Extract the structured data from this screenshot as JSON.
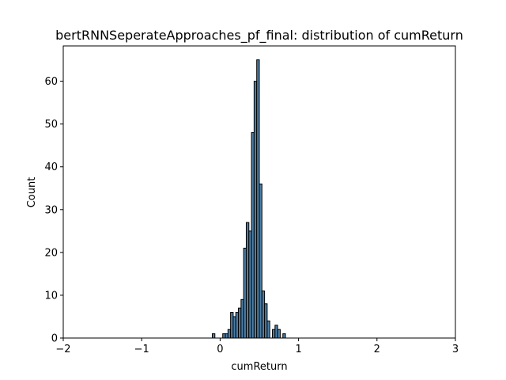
{
  "chart_data": {
    "type": "bar",
    "title": "bertRNNSeperateApproaches_pf_final: distribution of cumReturn",
    "xlabel": "cumReturn",
    "ylabel": "Count",
    "xlim": [
      -2,
      3
    ],
    "ylim": [
      0,
      68.25
    ],
    "xticks": [
      -2,
      -1,
      0,
      1,
      2,
      3
    ],
    "yticks": [
      0,
      10,
      20,
      30,
      40,
      50,
      60
    ],
    "grid": false,
    "bar_color": "#4c7ea6",
    "edge_color": "#000000",
    "bin_width": 0.0333,
    "bins": [
      {
        "x0": -0.1,
        "x1": -0.0667,
        "count": 1
      },
      {
        "x0": -0.0667,
        "x1": -0.0333,
        "count": 0
      },
      {
        "x0": -0.0333,
        "x1": 0.0,
        "count": 0
      },
      {
        "x0": 0.0,
        "x1": 0.0333,
        "count": 0
      },
      {
        "x0": 0.0333,
        "x1": 0.0667,
        "count": 1
      },
      {
        "x0": 0.0667,
        "x1": 0.1,
        "count": 1
      },
      {
        "x0": 0.1,
        "x1": 0.1333,
        "count": 2
      },
      {
        "x0": 0.1333,
        "x1": 0.1667,
        "count": 6
      },
      {
        "x0": 0.1667,
        "x1": 0.2,
        "count": 5
      },
      {
        "x0": 0.2,
        "x1": 0.2333,
        "count": 6
      },
      {
        "x0": 0.2333,
        "x1": 0.2667,
        "count": 7
      },
      {
        "x0": 0.2667,
        "x1": 0.3,
        "count": 9
      },
      {
        "x0": 0.3,
        "x1": 0.3333,
        "count": 21
      },
      {
        "x0": 0.3333,
        "x1": 0.3667,
        "count": 27
      },
      {
        "x0": 0.3667,
        "x1": 0.4,
        "count": 25
      },
      {
        "x0": 0.4,
        "x1": 0.4333,
        "count": 48
      },
      {
        "x0": 0.4333,
        "x1": 0.4667,
        "count": 60
      },
      {
        "x0": 0.4667,
        "x1": 0.5,
        "count": 65
      },
      {
        "x0": 0.5,
        "x1": 0.5333,
        "count": 36
      },
      {
        "x0": 0.5333,
        "x1": 0.5667,
        "count": 11
      },
      {
        "x0": 0.5667,
        "x1": 0.6,
        "count": 8
      },
      {
        "x0": 0.6,
        "x1": 0.6333,
        "count": 4
      },
      {
        "x0": 0.6333,
        "x1": 0.6667,
        "count": 0
      },
      {
        "x0": 0.6667,
        "x1": 0.7,
        "count": 2
      },
      {
        "x0": 0.7,
        "x1": 0.7333,
        "count": 3
      },
      {
        "x0": 0.7333,
        "x1": 0.7667,
        "count": 2
      },
      {
        "x0": 0.7667,
        "x1": 0.8,
        "count": 0
      },
      {
        "x0": 0.8,
        "x1": 0.8333,
        "count": 1
      }
    ]
  }
}
